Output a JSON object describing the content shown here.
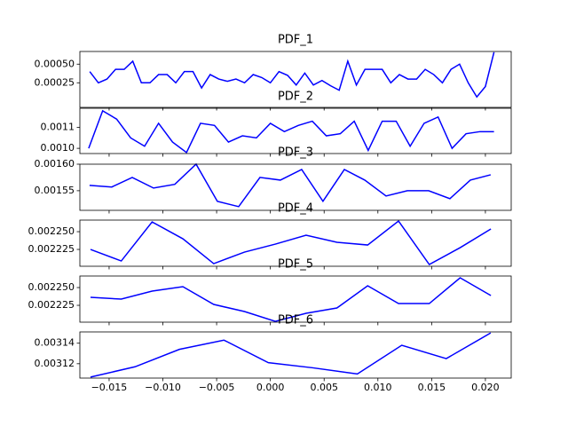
{
  "chart_data": [
    {
      "type": "line",
      "title": "PDF_1",
      "xlim": [
        -0.01772,
        0.0224
      ],
      "ylim": [
        -8e-05,
        0.00067
      ],
      "yticks": [
        0.00025,
        {
          "value": 0.0005,
          "label": "0.00050"
        }
      ],
      "series": [
        {
          "color": "blue",
          "x": [
            -0.0168,
            -0.016,
            -0.0152,
            -0.0144,
            -0.0136,
            -0.0128,
            -0.012,
            -0.0112,
            -0.0104,
            -0.0096,
            -0.0088,
            -0.008,
            -0.0072,
            -0.0064,
            -0.0056,
            -0.0048,
            -0.004,
            -0.0032,
            -0.0024,
            -0.0016,
            -0.0008,
            0,
            0.0008,
            0.0016,
            0.0024,
            0.0032,
            0.004,
            0.0048,
            0.0056,
            0.0064,
            0.0072,
            0.008,
            0.0088,
            0.0096,
            0.0104,
            0.0112,
            0.012,
            0.0128,
            0.0136,
            0.0144,
            0.0152,
            0.016,
            0.0168,
            0.0176,
            0.0184,
            0.0192,
            0.02,
            0.0208
          ],
          "values": [
            0.0004,
            0.00025,
            0.0003,
            0.00043,
            0.00043,
            0.00054,
            0.00025,
            0.00025,
            0.00036,
            0.00036,
            0.00025,
            0.0004,
            0.0004,
            0.00018,
            0.00036,
            0.0003,
            0.00027,
            0.0003,
            0.00025,
            0.00036,
            0.00032,
            0.00025,
            0.0004,
            0.00035,
            0.00022,
            0.00038,
            0.00022,
            0.00028,
            0.00021,
            0.00015,
            0.00054,
            0.00022,
            0.00043,
            0.00043,
            0.00043,
            0.00025,
            0.00036,
            0.0003,
            0.0003,
            0.00043,
            0.00036,
            0.00025,
            0.00043,
            0.0005,
            0.00025,
            6e-05,
            0.0002,
            0.00066
          ]
        }
      ]
    },
    {
      "type": "line",
      "title": "PDF_2",
      "xlim": [
        -0.01772,
        0.0224
      ],
      "ylim": [
        0.000975,
        0.001192
      ],
      "yticks": [
        {
          "value": 0.001,
          "label": "0.0010"
        },
        0.0011
      ],
      "series": [
        {
          "color": "blue",
          "x": [
            -0.0169,
            -0.0156,
            -0.0143,
            -0.013,
            -0.0117,
            -0.0104,
            -0.0091,
            -0.0078,
            -0.0065,
            -0.0052,
            -0.0039,
            -0.0026,
            -0.0013,
            0,
            0.0013,
            0.0026,
            0.0039,
            0.0052,
            0.0065,
            0.0078,
            0.0091,
            0.0104,
            0.0117,
            0.013,
            0.0143,
            0.0156,
            0.0169,
            0.0182,
            0.0195,
            0.0208
          ],
          "values": [
            0.001,
            0.00118,
            0.00114,
            0.00105,
            0.00101,
            0.00112,
            0.00103,
            0.00098,
            0.00112,
            0.00111,
            0.00103,
            0.00106,
            0.00105,
            0.00112,
            0.00108,
            0.00111,
            0.00113,
            0.00106,
            0.00107,
            0.00113,
            0.00099,
            0.00113,
            0.00113,
            0.00101,
            0.00112,
            0.00115,
            0.001,
            0.00107,
            0.00108,
            0.00108
          ]
        }
      ]
    },
    {
      "type": "line",
      "title": "PDF_3",
      "xlim": [
        -0.01772,
        0.0224
      ],
      "ylim": [
        0.001513,
        0.0016
      ],
      "yticks": [
        0.00155,
        {
          "value": 0.0016,
          "label": "0.00160"
        }
      ],
      "series": [
        {
          "color": "blue",
          "x": [
            -0.01682,
            -0.01475,
            -0.01285,
            -0.01087,
            -0.00889,
            -0.00691,
            -0.00493,
            -0.00295,
            -0.00097,
            0.00093,
            0.00291,
            0.00489,
            0.00688,
            0.00878,
            0.01076,
            0.01274,
            0.01472,
            0.0167,
            0.0186,
            0.02049
          ],
          "values": [
            0.00156,
            0.001557,
            0.001575,
            0.001555,
            0.001562,
            0.0016,
            0.00153,
            0.00152,
            0.001575,
            0.00157,
            0.00159,
            0.00153,
            0.00159,
            0.00157,
            0.00154,
            0.00155,
            0.00155,
            0.001535,
            0.00157,
            0.00158
          ]
        }
      ]
    },
    {
      "type": "line",
      "title": "PDF_4",
      "xlim": [
        -0.01772,
        0.0224
      ],
      "ylim": [
        0.0022013,
        0.0022663
      ],
      "yticks": [
        0.002225,
        {
          "value": 0.00225,
          "label": "0.002250"
        }
      ],
      "series": [
        {
          "color": "blue",
          "x": [
            -0.01673,
            -0.01387,
            -0.011,
            -0.00814,
            -0.00527,
            -0.00241,
            0.00046,
            0.00332,
            0.00619,
            0.00905,
            0.01192,
            0.01478,
            0.01765,
            0.02051
          ],
          "values": [
            0.002225,
            0.00220875,
            0.00226375,
            0.00224,
            0.002205,
            0.00222125,
            0.0022325,
            0.002245,
            0.002235,
            0.00223125,
            0.002265,
            0.00220375,
            0.0022275,
            0.00225375
          ]
        }
      ]
    },
    {
      "type": "line",
      "title": "PDF_5",
      "xlim": [
        -0.01772,
        0.0224
      ],
      "ylim": [
        0.0022013,
        0.00226625
      ],
      "yticks": [
        0.002225,
        {
          "value": 0.00225,
          "label": "0.002250"
        }
      ],
      "series": [
        {
          "color": "blue",
          "x": [
            -0.01673,
            -0.01387,
            -0.011,
            -0.00814,
            -0.00527,
            -0.00241,
            0.00046,
            0.00332,
            0.00619,
            0.00905,
            0.01192,
            0.01478,
            0.01765,
            0.02051
          ],
          "values": [
            0.00223625,
            0.00223375,
            0.002245,
            0.00225125,
            0.00222625,
            0.00221625,
            0.0022025,
            0.00221375,
            0.00222125,
            0.0022525,
            0.0022275,
            0.0022275,
            0.00226375,
            0.00223875
          ]
        }
      ]
    },
    {
      "type": "line",
      "title": "PDF_6",
      "xlim": [
        -0.01772,
        0.0224
      ],
      "ylim": [
        0.003106,
        0.003151
      ],
      "yticks": [
        0.00312,
        0.00314
      ],
      "xticks": [
        {
          "value": -0.015,
          "label": "−0.015"
        },
        {
          "value": -0.01,
          "label": "−0.010"
        },
        {
          "value": -0.005,
          "label": "−0.005"
        },
        {
          "value": 0,
          "label": "0.000"
        },
        0.005,
        {
          "value": 0.01,
          "label": "0.010"
        },
        0.015,
        {
          "value": 0.02,
          "label": "0.020"
        }
      ],
      "series": [
        {
          "color": "blue",
          "x": [
            -0.01673,
            -0.01259,
            -0.00846,
            -0.00432,
            -0.00019,
            0.00395,
            0.00809,
            0.01222,
            0.01636,
            0.02049
          ],
          "values": [
            0.003107,
            0.003117,
            0.003134,
            0.003143,
            0.003121,
            0.003116,
            0.00311,
            0.003138,
            0.003125,
            0.00315
          ]
        }
      ]
    }
  ]
}
